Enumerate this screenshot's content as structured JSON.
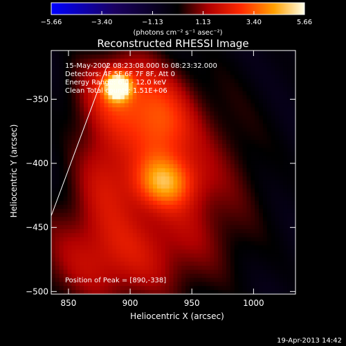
{
  "chart_data": {
    "type": "heatmap",
    "title": "Reconstructed RHESSI Image",
    "xlabel": "Heliocentric X (arcsec)",
    "ylabel": "Heliocentric Y (arcsec)",
    "xlim": [
      836,
      1034
    ],
    "ylim": [
      -502,
      -312
    ],
    "xticks": [
      850,
      900,
      950,
      1000
    ],
    "yticks": [
      -350,
      -400,
      -450,
      -500
    ],
    "colorbar": {
      "min": -5.66,
      "max": 5.66,
      "ticks": [
        "-5.66",
        "-3.40",
        "-1.13",
        "1.13",
        "3.40",
        "5.66"
      ],
      "unit_label": "(photons cm⁻² s⁻¹ asec⁻²)",
      "colors": [
        "#0000ff",
        "#000000",
        "#ff0000",
        "#ffff00",
        "#ffffff"
      ]
    },
    "annotations": {
      "time": "15-May-2002 08:23:08.000 to 08:23:32.000",
      "detectors": "Detectors: 4F 5F 6F 7F 8F, Att 0",
      "energy": "Energy Range: 6.0 - 12.0 keV",
      "method": "Clean     Total counts: 1.51E+06",
      "peak": "Position of Peak = [890,-338]"
    },
    "sources": [
      {
        "x": 890,
        "y": -340,
        "peak": 5.66,
        "sx": 7,
        "sy": 7,
        "label": "peak"
      },
      {
        "x": 893,
        "y": -343,
        "peak": 3.0,
        "sx": 26,
        "sy": 22
      },
      {
        "x": 925,
        "y": -374,
        "peak": 2.7,
        "sx": 18,
        "sy": 24
      },
      {
        "x": 928,
        "y": -415,
        "peak": 3.1,
        "sx": 18,
        "sy": 14
      },
      {
        "x": 880,
        "y": -400,
        "peak": 1.9,
        "sx": 18,
        "sy": 32
      },
      {
        "x": 900,
        "y": -460,
        "peak": 1.5,
        "sx": 55,
        "sy": 35
      },
      {
        "x": 880,
        "y": -480,
        "peak": 1.2,
        "sx": 40,
        "sy": 25
      },
      {
        "x": 960,
        "y": -400,
        "peak": 1.3,
        "sx": 35,
        "sy": 50
      }
    ],
    "limb_line": {
      "x": [
        836,
        882
      ],
      "y": [
        -441,
        -322
      ]
    },
    "background_level": -0.6
  },
  "footer": {
    "date": "19-Apr-2013 14:42"
  }
}
